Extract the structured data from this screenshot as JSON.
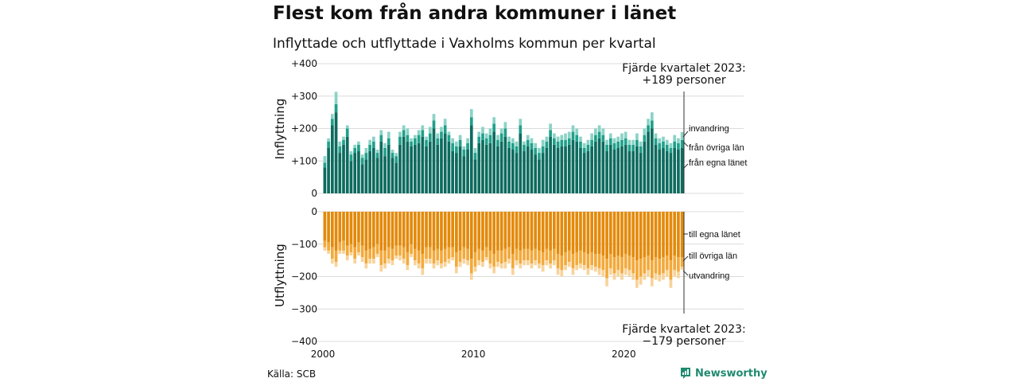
{
  "title": "Flest kom från andra kommuner i länet",
  "subtitle": "Inflyttade och utflyttade i Vaxholms kommun per kvartal",
  "source": "Källa: SCB",
  "brand": "Newsworthy",
  "colors": {
    "in_egna": "#0d6b5e",
    "in_ovriga": "#20a08a",
    "in_invandring": "#8ad3c6",
    "out_egna": "#e38a0a",
    "out_ovriga": "#f3a93a",
    "out_utvandring": "#f8d39a",
    "grid": "#dcdcdc",
    "brand": "#1f8a70"
  },
  "chart_data": {
    "type": "bar",
    "stacked": true,
    "x_start": 2000,
    "quarters_per_year": 4,
    "num_quarters": 96,
    "x_ticks": [
      "2000",
      "2010",
      "2020"
    ],
    "top_panel": {
      "ylabel": "Inflyttning",
      "ylim": [
        0,
        400
      ],
      "ticks": [
        "0",
        "+100",
        "+200",
        "+300",
        "+400"
      ],
      "legend": [
        "invandring",
        "från övriga län",
        "från egna länet"
      ],
      "annotation": [
        "Fjärde kvartalet 2023:",
        "+189 personer"
      ],
      "series": [
        {
          "name": "från egna länet",
          "values": [
            80,
            140,
            210,
            250,
            125,
            150,
            175,
            100,
            125,
            130,
            90,
            105,
            130,
            140,
            110,
            160,
            115,
            150,
            110,
            95,
            150,
            175,
            160,
            145,
            150,
            155,
            175,
            145,
            160,
            200,
            150,
            170,
            185,
            160,
            130,
            125,
            145,
            115,
            135,
            210,
            105,
            155,
            165,
            150,
            155,
            190,
            145,
            160,
            175,
            140,
            135,
            125,
            185,
            130,
            145,
            135,
            120,
            105,
            125,
            140,
            175,
            150,
            140,
            145,
            145,
            150,
            165,
            160,
            140,
            125,
            130,
            145,
            160,
            170,
            160,
            130,
            150,
            135,
            140,
            145,
            150,
            130,
            130,
            145,
            125,
            160,
            190,
            200,
            150,
            135,
            140,
            130,
            125,
            140,
            135,
            140
          ]
        },
        {
          "name": "från övriga län",
          "values": [
            15,
            20,
            20,
            25,
            20,
            15,
            25,
            20,
            15,
            20,
            20,
            20,
            20,
            20,
            15,
            20,
            25,
            20,
            15,
            20,
            25,
            20,
            20,
            15,
            20,
            25,
            20,
            20,
            25,
            25,
            20,
            20,
            25,
            20,
            25,
            20,
            20,
            20,
            20,
            25,
            20,
            20,
            20,
            20,
            25,
            25,
            20,
            25,
            25,
            20,
            20,
            20,
            25,
            20,
            20,
            20,
            20,
            20,
            20,
            20,
            20,
            20,
            20,
            20,
            20,
            20,
            25,
            20,
            20,
            15,
            20,
            20,
            20,
            20,
            20,
            20,
            20,
            20,
            20,
            20,
            20,
            20,
            20,
            20,
            20,
            20,
            20,
            25,
            20,
            20,
            20,
            20,
            15,
            20,
            20,
            25
          ]
        },
        {
          "name": "invandring",
          "values": [
            20,
            10,
            15,
            38,
            15,
            10,
            10,
            10,
            10,
            10,
            10,
            15,
            15,
            15,
            10,
            15,
            15,
            20,
            10,
            10,
            15,
            15,
            20,
            10,
            10,
            15,
            15,
            10,
            20,
            20,
            15,
            15,
            20,
            10,
            15,
            15,
            15,
            10,
            15,
            25,
            15,
            15,
            20,
            15,
            20,
            20,
            15,
            15,
            20,
            15,
            15,
            15,
            20,
            10,
            15,
            15,
            15,
            15,
            20,
            15,
            20,
            15,
            15,
            15,
            20,
            20,
            20,
            20,
            15,
            15,
            15,
            20,
            20,
            20,
            20,
            15,
            15,
            15,
            15,
            20,
            20,
            15,
            15,
            20,
            15,
            20,
            20,
            25,
            15,
            15,
            15,
            15,
            15,
            20,
            15,
            24
          ]
        }
      ]
    },
    "bottom_panel": {
      "ylabel": "Utflyttning",
      "ylim": [
        -400,
        0
      ],
      "ticks": [
        "0",
        "−100",
        "−200",
        "−300",
        "−400"
      ],
      "legend": [
        "till egna länet",
        "till övriga län",
        "utvandring"
      ],
      "annotation": [
        "Fjärde kvartalet 2023:",
        "−179 personer"
      ],
      "series": [
        {
          "name": "till egna länet",
          "values": [
            -90,
            -95,
            -110,
            -120,
            -95,
            -90,
            -105,
            -100,
            -110,
            -95,
            -105,
            -120,
            -115,
            -110,
            -100,
            -120,
            -120,
            -110,
            -115,
            -105,
            -105,
            -110,
            -125,
            -100,
            -115,
            -120,
            -130,
            -110,
            -110,
            -120,
            -115,
            -120,
            -115,
            -110,
            -110,
            -125,
            -120,
            -110,
            -115,
            -145,
            -125,
            -115,
            -120,
            -110,
            -120,
            -130,
            -120,
            -120,
            -115,
            -110,
            -130,
            -115,
            -120,
            -115,
            -115,
            -120,
            -115,
            -120,
            -125,
            -115,
            -120,
            -115,
            -130,
            -135,
            -125,
            -120,
            -130,
            -125,
            -120,
            -125,
            -130,
            -125,
            -130,
            -130,
            -135,
            -145,
            -130,
            -140,
            -135,
            -140,
            -130,
            -135,
            -140,
            -150,
            -145,
            -140,
            -135,
            -150,
            -140,
            -145,
            -140,
            -135,
            -150,
            -135,
            -140,
            -140
          ]
        },
        {
          "name": "till övriga län",
          "values": [
            -20,
            -25,
            -35,
            -35,
            -25,
            -30,
            -30,
            -25,
            -35,
            -30,
            -35,
            -40,
            -30,
            -35,
            -30,
            -45,
            -40,
            -35,
            -35,
            -30,
            -30,
            -35,
            -40,
            -30,
            -35,
            -40,
            -45,
            -35,
            -35,
            -40,
            -35,
            -40,
            -40,
            -35,
            -30,
            -45,
            -35,
            -35,
            -35,
            -45,
            -45,
            -35,
            -35,
            -30,
            -40,
            -40,
            -35,
            -40,
            -40,
            -35,
            -45,
            -35,
            -40,
            -35,
            -35,
            -40,
            -35,
            -40,
            -40,
            -35,
            -40,
            -35,
            -45,
            -45,
            -40,
            -35,
            -45,
            -40,
            -40,
            -40,
            -45,
            -40,
            -40,
            -45,
            -45,
            -60,
            -45,
            -50,
            -45,
            -50,
            -45,
            -45,
            -50,
            -60,
            -55,
            -50,
            -45,
            -55,
            -50,
            -50,
            -50,
            -45,
            -60,
            -45,
            -45,
            -30
          ]
        },
        {
          "name": "utvandring",
          "values": [
            -10,
            -10,
            -15,
            -15,
            -10,
            -10,
            -15,
            -10,
            -15,
            -10,
            -15,
            -15,
            -15,
            -15,
            -10,
            -20,
            -15,
            -15,
            -15,
            -10,
            -15,
            -15,
            -15,
            -10,
            -15,
            -15,
            -20,
            -15,
            -15,
            -15,
            -15,
            -15,
            -15,
            -15,
            -10,
            -20,
            -15,
            -15,
            -15,
            -20,
            -15,
            -15,
            -15,
            -10,
            -15,
            -20,
            -15,
            -15,
            -20,
            -15,
            -20,
            -15,
            -15,
            -15,
            -15,
            -15,
            -15,
            -15,
            -20,
            -15,
            -15,
            -15,
            -20,
            -20,
            -15,
            -15,
            -20,
            -15,
            -15,
            -15,
            -20,
            -15,
            -15,
            -20,
            -20,
            -25,
            -20,
            -20,
            -20,
            -20,
            -20,
            -20,
            -20,
            -25,
            -25,
            -20,
            -20,
            -25,
            -20,
            -20,
            -20,
            -20,
            -25,
            -20,
            -20,
            -9
          ]
        }
      ]
    }
  }
}
